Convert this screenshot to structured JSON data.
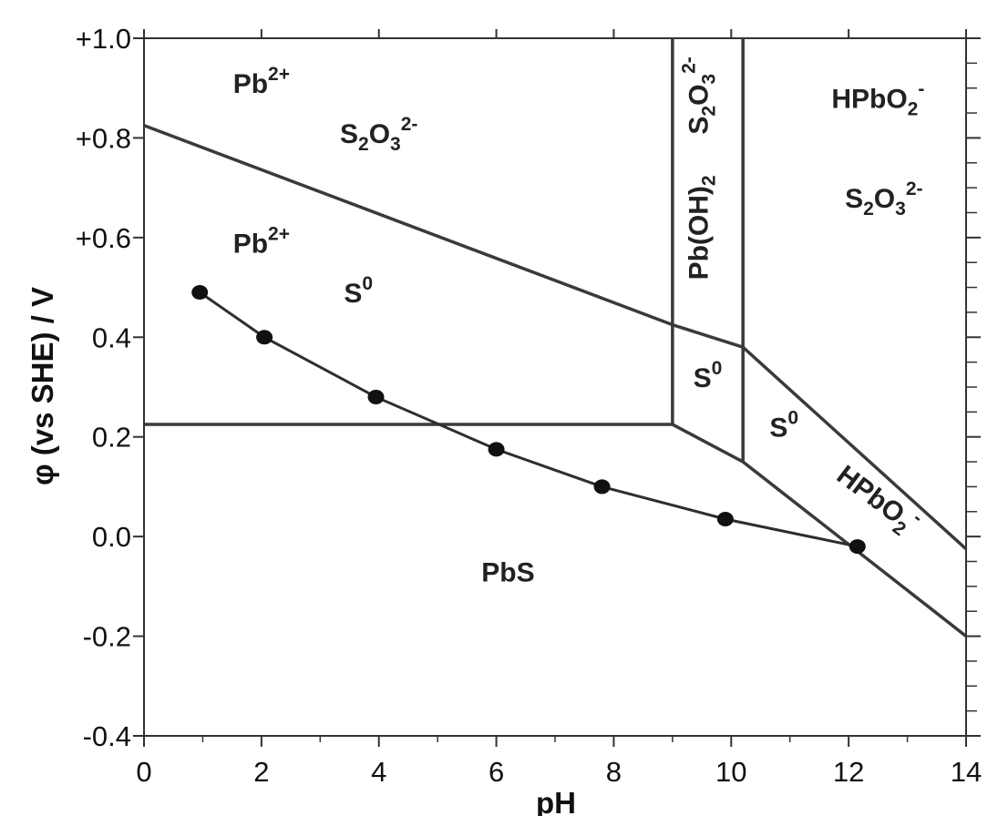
{
  "chart_data": {
    "type": "line",
    "xlabel": "pH",
    "ylabel": "φ (vs SHE) / V",
    "xlim": [
      0,
      14
    ],
    "ylim": [
      -0.4,
      1.0
    ],
    "x_ticks": [
      "0",
      "2",
      "4",
      "6",
      "8",
      "10",
      "12",
      "14"
    ],
    "y_ticks": [
      "-0.4",
      "-0.2",
      "0.0",
      "0.2",
      "0.4",
      "+0.6",
      "+0.8",
      "+1.0"
    ],
    "grid": false,
    "legend": "none",
    "boundaries": [
      {
        "points": [
          [
            0,
            0.825
          ],
          [
            9.0,
            0.425
          ],
          [
            10.2,
            0.38
          ]
        ]
      },
      {
        "points": [
          [
            0,
            0.225
          ],
          [
            9.0,
            0.225
          ]
        ]
      },
      {
        "points": [
          [
            9.0,
            1.0
          ],
          [
            9.0,
            0.225
          ]
        ]
      },
      {
        "points": [
          [
            10.2,
            1.0
          ],
          [
            10.2,
            0.15
          ]
        ]
      },
      {
        "points": [
          [
            9.0,
            0.225
          ],
          [
            10.2,
            0.15
          ],
          [
            14,
            -0.2
          ]
        ]
      },
      {
        "points": [
          [
            10.2,
            0.38
          ],
          [
            14,
            -0.025
          ]
        ]
      }
    ],
    "series": [
      {
        "x": [
          0.95,
          2.05,
          3.95,
          6.0,
          7.8,
          9.9,
          12.15
        ],
        "y": [
          0.49,
          0.4,
          0.28,
          0.175,
          0.1,
          0.035,
          -0.02
        ]
      }
    ],
    "regions": [
      {
        "label": "Pb2+",
        "base": "Pb",
        "sup": "2+",
        "x": 2.0,
        "y": 0.89
      },
      {
        "label": "S2O32-",
        "parts": [
          [
            "S",
            ""
          ],
          [
            "2",
            "sub"
          ],
          [
            "O",
            ""
          ],
          [
            "3",
            "sub"
          ],
          [
            "2-",
            "sup"
          ]
        ],
        "x": 4.0,
        "y": 0.79
      },
      {
        "label": "Pb2+",
        "base": "Pb",
        "sup": "2+",
        "x": 2.0,
        "y": 0.57
      },
      {
        "label": "S0",
        "base": "S",
        "sup": "0",
        "x": 3.65,
        "y": 0.47
      },
      {
        "label": "Pb(OH)2",
        "parts": [
          [
            "Pb(OH)",
            ""
          ],
          [
            "2",
            "sub"
          ]
        ],
        "x": 9.6,
        "y": 0.62,
        "rotate": -90
      },
      {
        "label": "S2O32-",
        "parts": [
          [
            "S",
            ""
          ],
          [
            "2",
            "sub"
          ],
          [
            "O",
            ""
          ],
          [
            "3",
            "sub"
          ],
          [
            "2-",
            "sup"
          ]
        ],
        "x": 9.6,
        "y": 0.885,
        "rotate": -90
      },
      {
        "label": "S0",
        "base": "S",
        "sup": "0",
        "x": 9.6,
        "y": 0.3
      },
      {
        "label": "HPbO2-",
        "parts": [
          [
            "HPbO",
            ""
          ],
          [
            "2",
            "sub"
          ],
          [
            "-",
            "sup"
          ]
        ],
        "x": 12.5,
        "y": 0.86
      },
      {
        "label": "S2O32-",
        "parts": [
          [
            "S",
            ""
          ],
          [
            "2",
            "sub"
          ],
          [
            "O",
            ""
          ],
          [
            "3",
            "sub"
          ],
          [
            "2-",
            "sup"
          ]
        ],
        "x": 12.6,
        "y": 0.66
      },
      {
        "label": "S0",
        "base": "S",
        "sup": "0",
        "x": 10.9,
        "y": 0.2
      },
      {
        "label": "HPbO2-",
        "parts": [
          [
            "HPbO",
            ""
          ],
          [
            "2",
            "sub"
          ],
          [
            "-",
            "sup"
          ]
        ],
        "x": 12.4,
        "y": 0.06,
        "rotate": 37
      },
      {
        "label": "PbS",
        "base": "PbS",
        "x": 6.2,
        "y": -0.09
      }
    ]
  }
}
